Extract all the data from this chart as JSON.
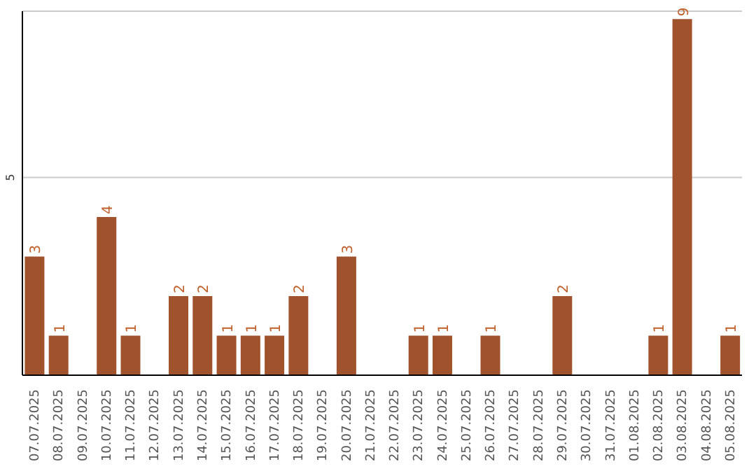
{
  "chart_data": {
    "type": "bar",
    "categories": [
      "07.07.2025",
      "08.07.2025",
      "09.07.2025",
      "10.07.2025",
      "11.07.2025",
      "12.07.2025",
      "13.07.2025",
      "14.07.2025",
      "15.07.2025",
      "16.07.2025",
      "17.07.2025",
      "18.07.2025",
      "19.07.2025",
      "20.07.2025",
      "21.07.2025",
      "22.07.2025",
      "23.07.2025",
      "24.07.2025",
      "25.07.2025",
      "26.07.2025",
      "27.07.2025",
      "28.07.2025",
      "29.07.2025",
      "30.07.2025",
      "31.07.2025",
      "01.08.2025",
      "02.08.2025",
      "03.08.2025",
      "04.08.2025",
      "05.08.2025"
    ],
    "values": [
      3,
      1,
      0,
      4,
      1,
      0,
      2,
      2,
      1,
      1,
      1,
      2,
      0,
      3,
      0,
      0,
      1,
      1,
      0,
      1,
      0,
      0,
      2,
      0,
      0,
      0,
      1,
      9,
      0,
      1
    ],
    "value_labels": [
      "3",
      "1",
      null,
      "4",
      "1",
      null,
      "2",
      "2",
      "1",
      "1",
      "1",
      "2",
      null,
      "3",
      null,
      null,
      "1",
      "1",
      null,
      "1",
      null,
      null,
      "2",
      null,
      null,
      null,
      "1",
      "9",
      null,
      "1"
    ],
    "color": "#a0522d",
    "ylim": [
      0,
      9.2
    ],
    "yticks": [
      5
    ],
    "grid": "y"
  }
}
